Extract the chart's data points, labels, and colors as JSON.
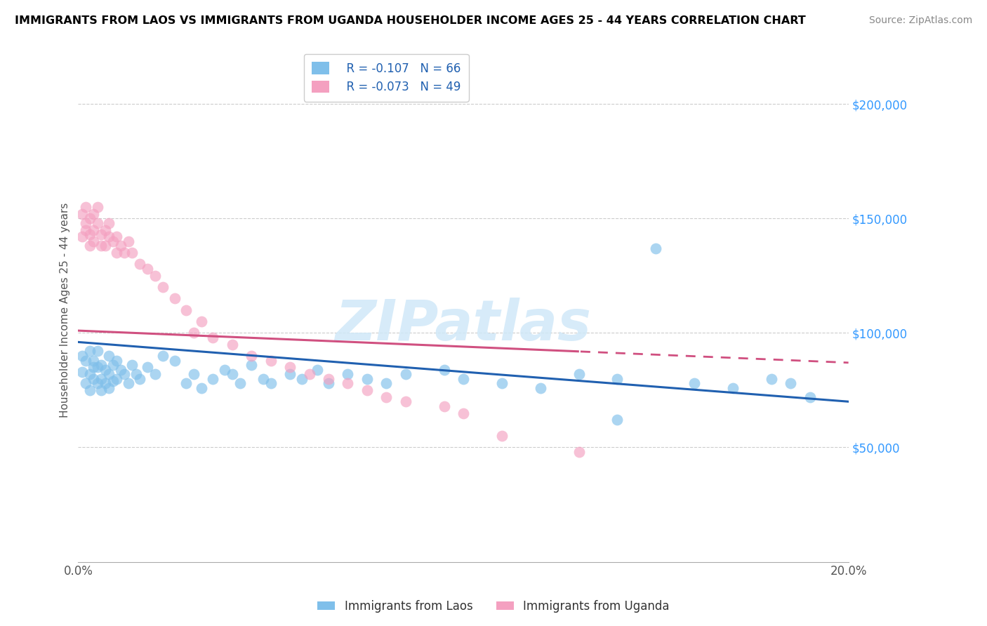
{
  "title": "IMMIGRANTS FROM LAOS VS IMMIGRANTS FROM UGANDA HOUSEHOLDER INCOME AGES 25 - 44 YEARS CORRELATION CHART",
  "source": "Source: ZipAtlas.com",
  "ylabel": "Householder Income Ages 25 - 44 years",
  "xlim": [
    0.0,
    0.2
  ],
  "ylim": [
    0,
    220000
  ],
  "laos_color": "#7fbfea",
  "uganda_color": "#f4a0c0",
  "laos_line_color": "#2060b0",
  "uganda_line_color": "#d05080",
  "laos_R": -0.107,
  "laos_N": 66,
  "uganda_R": -0.073,
  "uganda_N": 49,
  "legend_label_laos": "Immigrants from Laos",
  "legend_label_uganda": "Immigrants from Uganda",
  "watermark": "ZIPatlas",
  "laos_x": [
    0.001,
    0.001,
    0.002,
    0.002,
    0.003,
    0.003,
    0.003,
    0.004,
    0.004,
    0.004,
    0.005,
    0.005,
    0.005,
    0.006,
    0.006,
    0.006,
    0.007,
    0.007,
    0.008,
    0.008,
    0.008,
    0.009,
    0.009,
    0.01,
    0.01,
    0.011,
    0.012,
    0.013,
    0.014,
    0.015,
    0.016,
    0.018,
    0.02,
    0.022,
    0.025,
    0.028,
    0.03,
    0.032,
    0.035,
    0.038,
    0.04,
    0.042,
    0.045,
    0.048,
    0.05,
    0.055,
    0.058,
    0.062,
    0.065,
    0.07,
    0.075,
    0.08,
    0.085,
    0.095,
    0.1,
    0.11,
    0.12,
    0.13,
    0.14,
    0.15,
    0.16,
    0.17,
    0.14,
    0.18,
    0.185,
    0.19
  ],
  "laos_y": [
    90000,
    83000,
    88000,
    78000,
    92000,
    82000,
    75000,
    85000,
    80000,
    88000,
    78000,
    85000,
    92000,
    80000,
    86000,
    75000,
    84000,
    78000,
    90000,
    82000,
    76000,
    86000,
    79000,
    88000,
    80000,
    84000,
    82000,
    78000,
    86000,
    82000,
    80000,
    85000,
    82000,
    90000,
    88000,
    78000,
    82000,
    76000,
    80000,
    84000,
    82000,
    78000,
    86000,
    80000,
    78000,
    82000,
    80000,
    84000,
    78000,
    82000,
    80000,
    78000,
    82000,
    84000,
    80000,
    78000,
    76000,
    82000,
    80000,
    137000,
    78000,
    76000,
    62000,
    80000,
    78000,
    72000
  ],
  "uganda_x": [
    0.001,
    0.001,
    0.002,
    0.002,
    0.002,
    0.003,
    0.003,
    0.003,
    0.004,
    0.004,
    0.004,
    0.005,
    0.005,
    0.006,
    0.006,
    0.007,
    0.007,
    0.008,
    0.008,
    0.009,
    0.01,
    0.01,
    0.011,
    0.012,
    0.013,
    0.014,
    0.016,
    0.018,
    0.02,
    0.022,
    0.025,
    0.028,
    0.03,
    0.032,
    0.035,
    0.04,
    0.045,
    0.05,
    0.055,
    0.06,
    0.065,
    0.07,
    0.075,
    0.08,
    0.085,
    0.095,
    0.1,
    0.11,
    0.13
  ],
  "uganda_y": [
    142000,
    152000,
    148000,
    145000,
    155000,
    143000,
    138000,
    150000,
    145000,
    152000,
    140000,
    148000,
    155000,
    143000,
    138000,
    145000,
    138000,
    142000,
    148000,
    140000,
    135000,
    142000,
    138000,
    135000,
    140000,
    135000,
    130000,
    128000,
    125000,
    120000,
    115000,
    110000,
    100000,
    105000,
    98000,
    95000,
    90000,
    88000,
    85000,
    82000,
    80000,
    78000,
    75000,
    72000,
    70000,
    68000,
    65000,
    55000,
    48000
  ]
}
